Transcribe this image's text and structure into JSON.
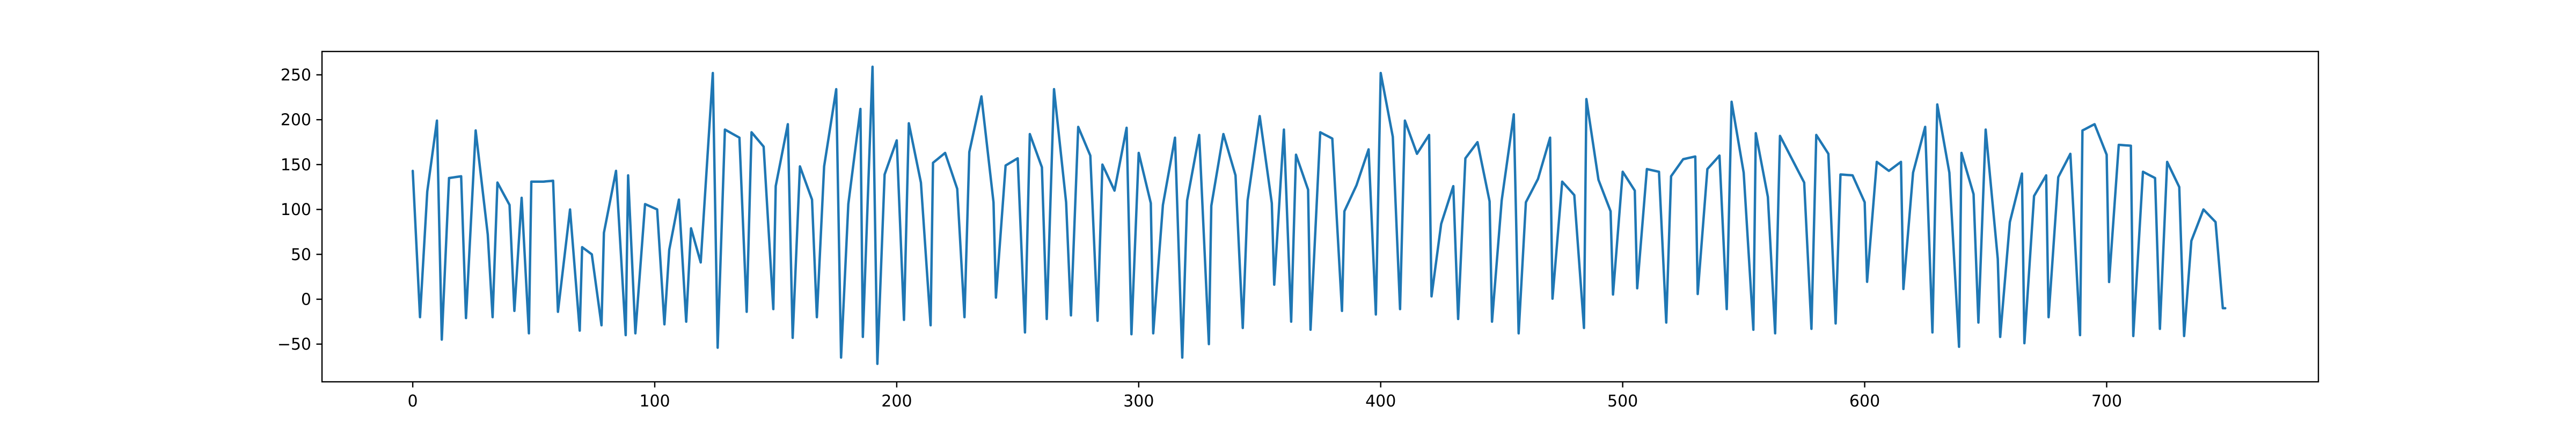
{
  "chart_data": {
    "type": "line",
    "title": "",
    "xlabel": "",
    "ylabel": "",
    "xlim": [
      -37.5,
      787.5
    ],
    "ylim": [
      -92,
      276
    ],
    "x_ticks": [
      0,
      100,
      200,
      300,
      400,
      500,
      600,
      700
    ],
    "y_ticks": [
      -50,
      0,
      50,
      100,
      150,
      200,
      250
    ],
    "grid": false,
    "legend": "none",
    "series": [
      {
        "color": "#1f77b4",
        "x_start": 0,
        "x_step": 1,
        "n_points": 750,
        "peaks": [
          [
            0,
            143
          ],
          [
            6,
            120
          ],
          [
            10,
            199
          ],
          [
            15,
            135
          ],
          [
            20,
            137
          ],
          [
            26,
            188
          ],
          [
            31,
            72
          ],
          [
            35,
            130
          ],
          [
            40,
            105
          ],
          [
            45,
            113
          ],
          [
            49,
            131
          ],
          [
            54,
            131
          ],
          [
            58,
            132
          ],
          [
            65,
            100
          ],
          [
            70,
            58
          ],
          [
            74,
            50
          ],
          [
            79,
            74
          ],
          [
            84,
            143
          ],
          [
            89,
            138
          ],
          [
            96,
            106
          ],
          [
            101,
            100
          ],
          [
            106,
            55
          ],
          [
            110,
            111
          ],
          [
            115,
            79
          ],
          [
            119,
            41
          ],
          [
            124,
            252
          ],
          [
            129,
            189
          ],
          [
            135,
            180
          ],
          [
            140,
            186
          ],
          [
            145,
            170
          ],
          [
            150,
            126
          ],
          [
            155,
            195
          ],
          [
            160,
            148
          ],
          [
            165,
            111
          ],
          [
            170,
            148
          ],
          [
            175,
            234
          ],
          [
            180,
            106
          ],
          [
            185,
            212
          ],
          [
            190,
            259
          ],
          [
            195,
            139
          ],
          [
            200,
            177
          ],
          [
            205,
            196
          ],
          [
            210,
            130
          ],
          [
            215,
            152
          ],
          [
            220,
            163
          ],
          [
            225,
            123
          ],
          [
            230,
            164
          ],
          [
            235,
            226
          ],
          [
            240,
            108
          ],
          [
            245,
            149
          ],
          [
            250,
            157
          ],
          [
            255,
            184
          ],
          [
            260,
            147
          ],
          [
            265,
            234
          ],
          [
            270,
            108
          ],
          [
            275,
            192
          ],
          [
            280,
            160
          ],
          [
            285,
            150
          ],
          [
            290,
            121
          ],
          [
            295,
            191
          ],
          [
            300,
            163
          ],
          [
            305,
            107
          ],
          [
            310,
            105
          ],
          [
            315,
            180
          ],
          [
            320,
            110
          ],
          [
            325,
            183
          ],
          [
            330,
            104
          ],
          [
            335,
            184
          ],
          [
            340,
            138
          ],
          [
            345,
            110
          ],
          [
            350,
            204
          ],
          [
            355,
            107
          ],
          [
            360,
            189
          ],
          [
            365,
            161
          ],
          [
            370,
            122
          ],
          [
            375,
            186
          ],
          [
            380,
            179
          ],
          [
            385,
            98
          ],
          [
            390,
            127
          ],
          [
            395,
            167
          ],
          [
            400,
            252
          ],
          [
            405,
            181
          ],
          [
            410,
            199
          ],
          [
            415,
            162
          ],
          [
            420,
            183
          ],
          [
            425,
            84
          ],
          [
            430,
            126
          ],
          [
            435,
            157
          ],
          [
            440,
            175
          ],
          [
            445,
            109
          ],
          [
            450,
            110
          ],
          [
            455,
            206
          ],
          [
            460,
            108
          ],
          [
            465,
            134
          ],
          [
            470,
            180
          ],
          [
            475,
            131
          ],
          [
            480,
            116
          ],
          [
            485,
            223
          ],
          [
            490,
            133
          ],
          [
            495,
            98
          ],
          [
            500,
            142
          ],
          [
            505,
            121
          ],
          [
            510,
            145
          ],
          [
            515,
            142
          ],
          [
            520,
            137
          ],
          [
            525,
            156
          ],
          [
            530,
            159
          ],
          [
            535,
            145
          ],
          [
            540,
            160
          ],
          [
            545,
            220
          ],
          [
            550,
            141
          ],
          [
            555,
            185
          ],
          [
            560,
            114
          ],
          [
            565,
            182
          ],
          [
            570,
            156
          ],
          [
            575,
            130
          ],
          [
            580,
            183
          ],
          [
            585,
            162
          ],
          [
            590,
            139
          ],
          [
            595,
            138
          ],
          [
            600,
            108
          ],
          [
            605,
            153
          ],
          [
            610,
            143
          ],
          [
            615,
            153
          ],
          [
            620,
            141
          ],
          [
            625,
            192
          ],
          [
            630,
            217
          ],
          [
            635,
            141
          ],
          [
            640,
            163
          ],
          [
            645,
            117
          ],
          [
            650,
            189
          ],
          [
            655,
            45
          ],
          [
            660,
            86
          ],
          [
            665,
            140
          ],
          [
            670,
            115
          ],
          [
            675,
            138
          ],
          [
            680,
            136
          ],
          [
            685,
            162
          ],
          [
            690,
            188
          ],
          [
            695,
            195
          ],
          [
            700,
            161
          ],
          [
            705,
            172
          ],
          [
            710,
            171
          ],
          [
            715,
            142
          ],
          [
            720,
            135
          ],
          [
            725,
            153
          ],
          [
            730,
            125
          ],
          [
            735,
            65
          ],
          [
            740,
            100
          ],
          [
            745,
            86
          ]
        ],
        "troughs": [
          [
            3,
            -20
          ],
          [
            12,
            -45
          ],
          [
            22,
            -21
          ],
          [
            33,
            -20
          ],
          [
            42,
            -13
          ],
          [
            48,
            -38
          ],
          [
            60,
            -14
          ],
          [
            69,
            -35
          ],
          [
            78,
            -29
          ],
          [
            88,
            -40
          ],
          [
            92,
            -38
          ],
          [
            104,
            -28
          ],
          [
            113,
            -25
          ],
          [
            126,
            -54
          ],
          [
            138,
            -14
          ],
          [
            149,
            -11
          ],
          [
            157,
            -43
          ],
          [
            167,
            -20
          ],
          [
            177,
            -65
          ],
          [
            186,
            -42
          ],
          [
            192,
            -72
          ],
          [
            203,
            -23
          ],
          [
            214,
            -29
          ],
          [
            228,
            -20
          ],
          [
            240,
            -35
          ],
          [
            253,
            -37
          ],
          [
            262,
            -22
          ],
          [
            272,
            -18
          ],
          [
            283,
            -24
          ],
          [
            297,
            -39
          ],
          [
            306,
            -38
          ],
          [
            318,
            -65
          ],
          [
            329,
            -50
          ],
          [
            343,
            -32
          ],
          [
            355,
            -27
          ],
          [
            363,
            -25
          ],
          [
            371,
            -34
          ],
          [
            384,
            -13
          ],
          [
            398,
            -17
          ],
          [
            408,
            -11
          ],
          [
            420,
            -17
          ],
          [
            432,
            -22
          ],
          [
            446,
            -25
          ],
          [
            457,
            -38
          ],
          [
            470,
            -32
          ],
          [
            484,
            -32
          ],
          [
            495,
            -29
          ],
          [
            505,
            -21
          ],
          [
            518,
            -26
          ],
          [
            530,
            -29
          ],
          [
            543,
            -11
          ],
          [
            554,
            -34
          ],
          [
            563,
            -38
          ],
          [
            578,
            -33
          ],
          [
            588,
            -27
          ],
          [
            600,
            -14
          ],
          [
            615,
            -21
          ],
          [
            628,
            -37
          ],
          [
            639,
            -53
          ],
          [
            647,
            -26
          ],
          [
            655,
            -74
          ],
          [
            666,
            -49
          ],
          [
            676,
            -20
          ],
          [
            689,
            -40
          ],
          [
            700,
            -19
          ],
          [
            711,
            -41
          ],
          [
            722,
            -33
          ],
          [
            732,
            -41
          ],
          [
            748,
            -10
          ]
        ]
      }
    ]
  }
}
